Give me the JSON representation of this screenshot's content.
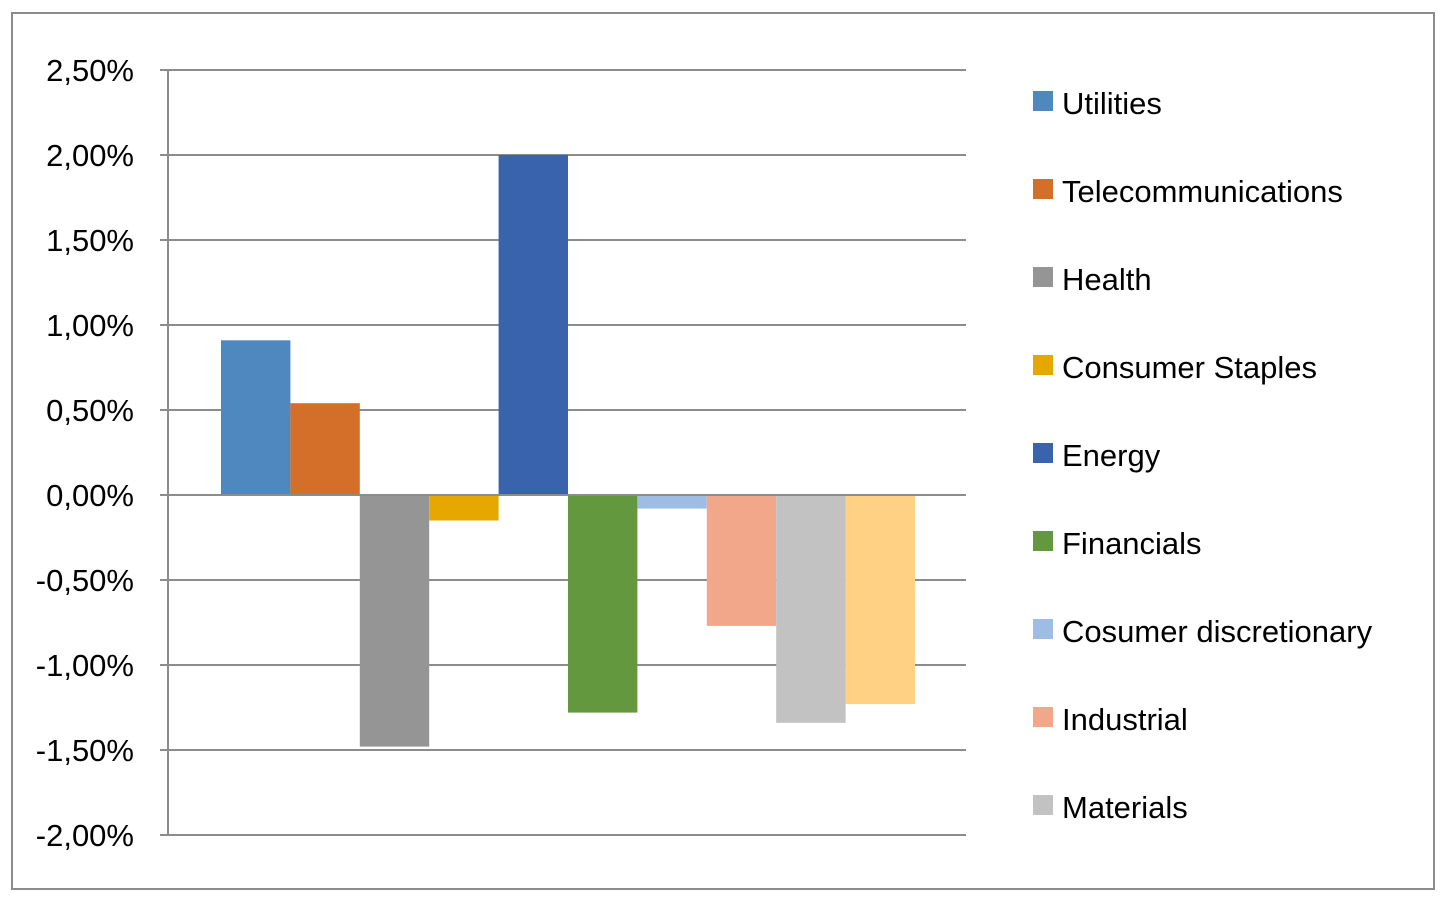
{
  "chart_data": {
    "type": "bar",
    "title": "",
    "xlabel": "",
    "ylabel": "",
    "ylim": [
      -0.02,
      0.025
    ],
    "yticks": [
      {
        "value": 0.025,
        "label": "2,50%"
      },
      {
        "value": 0.02,
        "label": "2,00%"
      },
      {
        "value": 0.015,
        "label": "1,50%"
      },
      {
        "value": 0.01,
        "label": "1,00%"
      },
      {
        "value": 0.005,
        "label": "0,50%"
      },
      {
        "value": 0.0,
        "label": "0,00%"
      },
      {
        "value": -0.005,
        "label": "-0,50%"
      },
      {
        "value": -0.01,
        "label": "-1,00%"
      },
      {
        "value": -0.015,
        "label": "-1,50%"
      },
      {
        "value": -0.02,
        "label": "-2,00%"
      }
    ],
    "grid": true,
    "legend_position": "right",
    "series": [
      {
        "name": "Utilities",
        "value": 0.0091,
        "color": "#4f87bf"
      },
      {
        "name": "Telecommunications",
        "value": 0.0054,
        "color": "#d46f2a"
      },
      {
        "name": "Health",
        "value": -0.0148,
        "color": "#959595"
      },
      {
        "name": "Consumer Staples",
        "value": -0.0015,
        "color": "#e6a800"
      },
      {
        "name": "Energy",
        "value": 0.02,
        "color": "#3a63ad"
      },
      {
        "name": "Financials",
        "value": -0.0128,
        "color": "#63983f"
      },
      {
        "name": "Cosumer discretionary",
        "value": -0.0008,
        "color": "#9dbde4"
      },
      {
        "name": "Industrial",
        "value": -0.0077,
        "color": "#f2a78b"
      },
      {
        "name": "Materials",
        "value": -0.0134,
        "color": "#c2c2c2"
      },
      {
        "name": "",
        "value": -0.0123,
        "color": "#ffd185"
      }
    ]
  }
}
